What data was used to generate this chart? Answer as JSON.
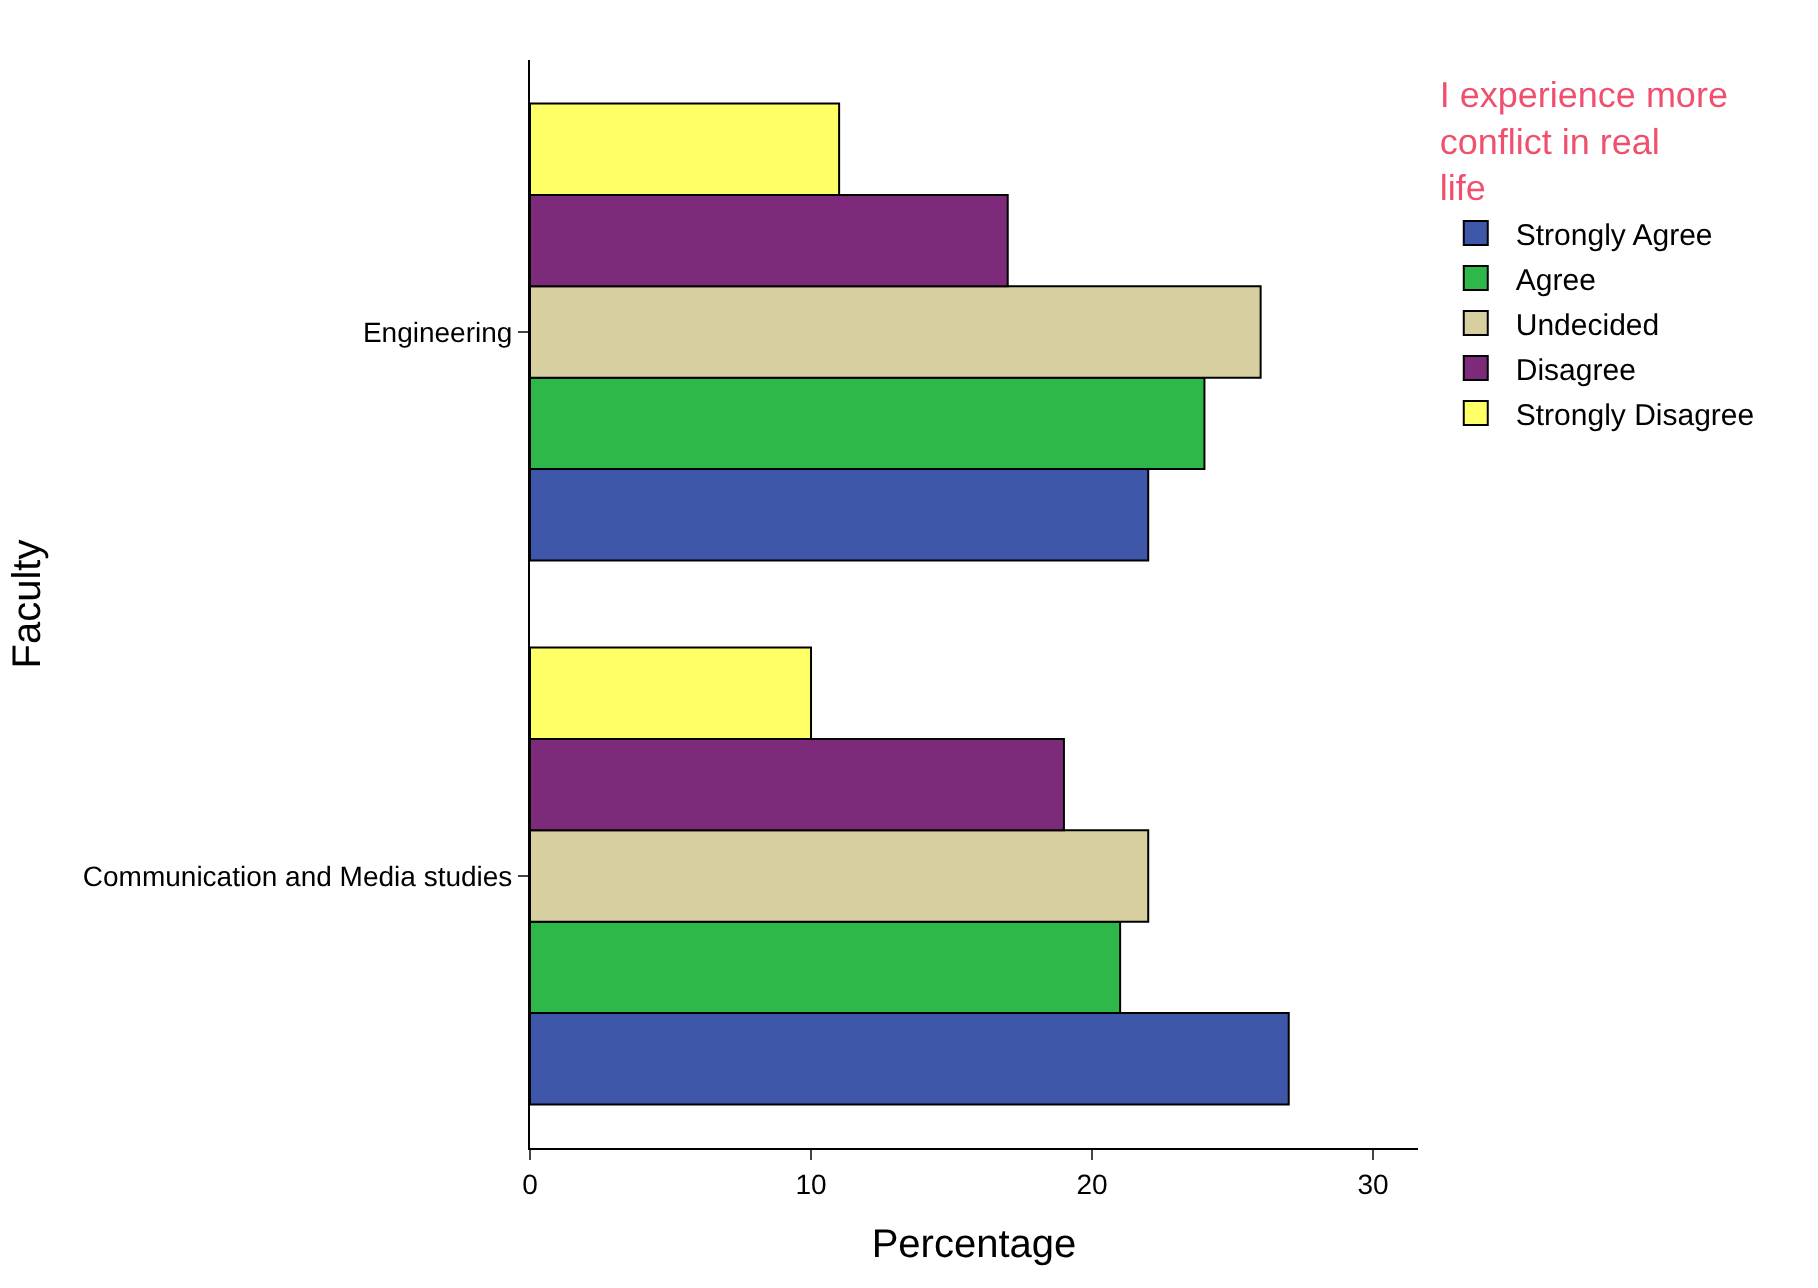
{
  "chart_data": {
    "type": "bar",
    "orientation": "horizontal",
    "xlabel": "Percentage",
    "ylabel": "Faculty",
    "legend_title": "I experience more conflict in real life",
    "categories": [
      "Engineering",
      "Communication and Media studies"
    ],
    "series": [
      {
        "name": "Strongly Agree",
        "color": "#3f57a8",
        "values": [
          22,
          27
        ]
      },
      {
        "name": "Agree",
        "color": "#2fb84a",
        "values": [
          24,
          21
        ]
      },
      {
        "name": "Undecided",
        "color": "#d8cfa0",
        "values": [
          26,
          22
        ]
      },
      {
        "name": "Disagree",
        "color": "#7d2a7a",
        "values": [
          17,
          19
        ]
      },
      {
        "name": "Strongly Disagree",
        "color": "#ffff66",
        "values": [
          11,
          10
        ]
      }
    ],
    "xlim": [
      0,
      31.6
    ],
    "xticks": [
      0,
      10,
      20,
      30
    ],
    "legend": "right"
  }
}
